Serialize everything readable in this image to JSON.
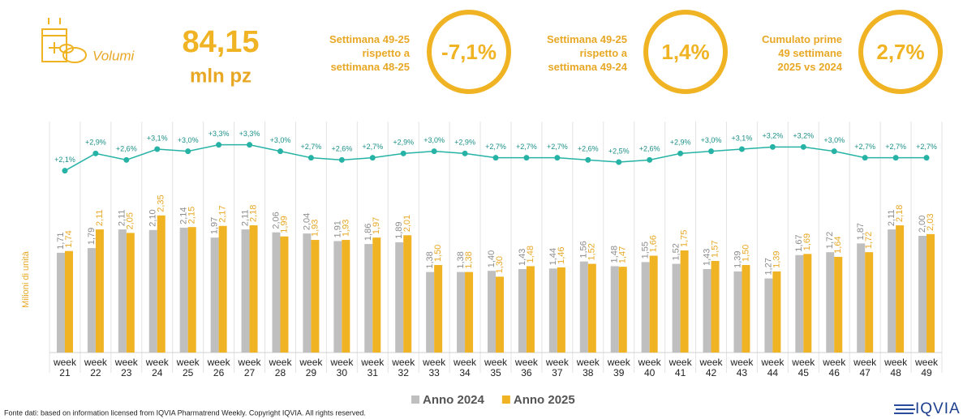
{
  "header": {
    "section": "Volumi",
    "total": "84,15",
    "unit": "mln pz",
    "kpis": [
      {
        "label_lines": [
          "Settimana 49-25",
          "rispetto a",
          "settimana 48-25"
        ],
        "value": "-7,1%"
      },
      {
        "label_lines": [
          "Settimana 49-25",
          "rispetto a",
          "settimana 49-24"
        ],
        "value": "1,4%"
      },
      {
        "label_lines": [
          "Cumulato prime",
          "49 settimane",
          "2025 vs 2024"
        ],
        "value": "2,7%"
      }
    ]
  },
  "chart_data": {
    "type": "bar",
    "y_label": "Milioni di unità",
    "categories": [
      "week 21",
      "week 22",
      "week 23",
      "week 24",
      "week 25",
      "week 26",
      "week 27",
      "week 28",
      "week 29",
      "week 30",
      "week 31",
      "week 32",
      "week 33",
      "week 34",
      "week 35",
      "week 36",
      "week 37",
      "week 38",
      "week 39",
      "week 40",
      "week 41",
      "week 42",
      "week 43",
      "week 44",
      "week 45",
      "week 46",
      "week 47",
      "week 48",
      "week 49"
    ],
    "ylim": [
      0,
      2.5
    ],
    "y2lim": [
      1.3,
      4.0
    ],
    "series": [
      {
        "name": "Anno 2024",
        "color": "#bfbfbf",
        "values": [
          1.71,
          1.79,
          2.11,
          2.1,
          2.14,
          1.97,
          2.11,
          2.06,
          2.04,
          1.91,
          1.86,
          1.89,
          1.38,
          1.38,
          1.4,
          1.43,
          1.44,
          1.56,
          1.48,
          1.55,
          1.52,
          1.43,
          1.39,
          1.27,
          1.67,
          1.72,
          1.87,
          2.11,
          2.0
        ],
        "value_labels": [
          "1,71",
          "1,79",
          "2,11",
          "2,10",
          "2,14",
          "1,97",
          "2,11",
          "2,06",
          "2,04",
          "1,91",
          "1,86",
          "1,89",
          "1,38",
          "1,38",
          "1,40",
          "1,43",
          "1,44",
          "1,56",
          "1,48",
          "1,55",
          "1,52",
          "1,43",
          "1,39",
          "1,27",
          "1,67",
          "1,72",
          "1,87",
          "2,11",
          "2,00"
        ]
      },
      {
        "name": "Anno 2025",
        "color": "#f0b323",
        "values": [
          1.74,
          2.11,
          2.05,
          2.35,
          2.15,
          2.17,
          2.18,
          1.99,
          1.93,
          1.93,
          1.97,
          2.01,
          1.5,
          1.38,
          1.3,
          1.48,
          1.46,
          1.52,
          1.47,
          1.66,
          1.75,
          1.57,
          1.5,
          1.39,
          1.69,
          1.64,
          1.72,
          2.18,
          2.03
        ],
        "value_labels": [
          "1,74",
          "2,11",
          "2,05",
          "2,35",
          "2,15",
          "2,17",
          "2,18",
          "1,99",
          "1,93",
          "1,93",
          "1,97",
          "2,01",
          "1,50",
          "1,38",
          "1,30",
          "1,48",
          "1,46",
          "1,52",
          "1,47",
          "1,66",
          "1,75",
          "1,57",
          "1,50",
          "1,39",
          "1,69",
          "1,64",
          "1,72",
          "2,18",
          "2,03"
        ]
      },
      {
        "type": "line",
        "axis": "y2",
        "color": "#26b3a6",
        "values": [
          2.1,
          2.9,
          2.6,
          3.1,
          3.0,
          3.3,
          3.3,
          3.0,
          2.7,
          2.6,
          2.7,
          2.9,
          3.0,
          2.9,
          2.7,
          2.7,
          2.7,
          2.6,
          2.5,
          2.6,
          2.9,
          3.0,
          3.1,
          3.2,
          3.2,
          3.0,
          2.7,
          2.7,
          2.7
        ],
        "value_labels": [
          "+2,1%",
          "+2,9%",
          "+2,6%",
          "+3,1%",
          "+3,0%",
          "+3,3%",
          "+3,3%",
          "+3,0%",
          "+2,7%",
          "+2,6%",
          "+2,7%",
          "+2,9%",
          "+3,0%",
          "+2,9%",
          "+2,7%",
          "+2,7%",
          "+2,7%",
          "+2,6%",
          "+2,5%",
          "+2,6%",
          "+2,9%",
          "+3,0%",
          "+3,1%",
          "+3,2%",
          "+3,2%",
          "+3,0%",
          "+2,7%",
          "+2,7%",
          "+2,7%"
        ]
      }
    ]
  },
  "footer": {
    "source": "Fonte dati: based on information licensed from IQVIA Pharmatrend Weekly. Copyright IQVIA. All rights reserved.",
    "logo": "IQVIA"
  }
}
